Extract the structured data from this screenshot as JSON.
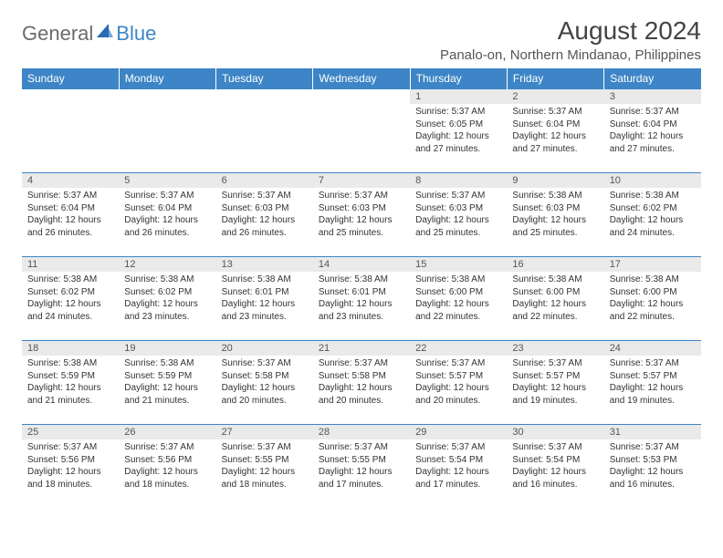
{
  "logo": {
    "part1": "General",
    "part2": "Blue"
  },
  "header": {
    "title": "August 2024",
    "subtitle": "Panalo-on, Northern Mindanao, Philippines"
  },
  "colors": {
    "header_bg": "#3d85c6",
    "header_text": "#ffffff",
    "daynum_bg": "#eaeaea",
    "cell_border": "#3d85c6",
    "page_bg": "#ffffff",
    "text": "#333333",
    "logo_gray": "#6b6b6b",
    "logo_blue": "#3d85c6"
  },
  "typography": {
    "title_fontsize": 28,
    "subtitle_fontsize": 15,
    "dayheader_fontsize": 12,
    "daynum_fontsize": 11,
    "body_fontsize": 10,
    "font_family": "Arial"
  },
  "calendar": {
    "day_headers": [
      "Sunday",
      "Monday",
      "Tuesday",
      "Wednesday",
      "Thursday",
      "Friday",
      "Saturday"
    ],
    "weeks": [
      [
        null,
        null,
        null,
        null,
        {
          "num": "1",
          "sunrise": "Sunrise: 5:37 AM",
          "sunset": "Sunset: 6:05 PM",
          "daylight": "Daylight: 12 hours and 27 minutes."
        },
        {
          "num": "2",
          "sunrise": "Sunrise: 5:37 AM",
          "sunset": "Sunset: 6:04 PM",
          "daylight": "Daylight: 12 hours and 27 minutes."
        },
        {
          "num": "3",
          "sunrise": "Sunrise: 5:37 AM",
          "sunset": "Sunset: 6:04 PM",
          "daylight": "Daylight: 12 hours and 27 minutes."
        }
      ],
      [
        {
          "num": "4",
          "sunrise": "Sunrise: 5:37 AM",
          "sunset": "Sunset: 6:04 PM",
          "daylight": "Daylight: 12 hours and 26 minutes."
        },
        {
          "num": "5",
          "sunrise": "Sunrise: 5:37 AM",
          "sunset": "Sunset: 6:04 PM",
          "daylight": "Daylight: 12 hours and 26 minutes."
        },
        {
          "num": "6",
          "sunrise": "Sunrise: 5:37 AM",
          "sunset": "Sunset: 6:03 PM",
          "daylight": "Daylight: 12 hours and 26 minutes."
        },
        {
          "num": "7",
          "sunrise": "Sunrise: 5:37 AM",
          "sunset": "Sunset: 6:03 PM",
          "daylight": "Daylight: 12 hours and 25 minutes."
        },
        {
          "num": "8",
          "sunrise": "Sunrise: 5:37 AM",
          "sunset": "Sunset: 6:03 PM",
          "daylight": "Daylight: 12 hours and 25 minutes."
        },
        {
          "num": "9",
          "sunrise": "Sunrise: 5:38 AM",
          "sunset": "Sunset: 6:03 PM",
          "daylight": "Daylight: 12 hours and 25 minutes."
        },
        {
          "num": "10",
          "sunrise": "Sunrise: 5:38 AM",
          "sunset": "Sunset: 6:02 PM",
          "daylight": "Daylight: 12 hours and 24 minutes."
        }
      ],
      [
        {
          "num": "11",
          "sunrise": "Sunrise: 5:38 AM",
          "sunset": "Sunset: 6:02 PM",
          "daylight": "Daylight: 12 hours and 24 minutes."
        },
        {
          "num": "12",
          "sunrise": "Sunrise: 5:38 AM",
          "sunset": "Sunset: 6:02 PM",
          "daylight": "Daylight: 12 hours and 23 minutes."
        },
        {
          "num": "13",
          "sunrise": "Sunrise: 5:38 AM",
          "sunset": "Sunset: 6:01 PM",
          "daylight": "Daylight: 12 hours and 23 minutes."
        },
        {
          "num": "14",
          "sunrise": "Sunrise: 5:38 AM",
          "sunset": "Sunset: 6:01 PM",
          "daylight": "Daylight: 12 hours and 23 minutes."
        },
        {
          "num": "15",
          "sunrise": "Sunrise: 5:38 AM",
          "sunset": "Sunset: 6:00 PM",
          "daylight": "Daylight: 12 hours and 22 minutes."
        },
        {
          "num": "16",
          "sunrise": "Sunrise: 5:38 AM",
          "sunset": "Sunset: 6:00 PM",
          "daylight": "Daylight: 12 hours and 22 minutes."
        },
        {
          "num": "17",
          "sunrise": "Sunrise: 5:38 AM",
          "sunset": "Sunset: 6:00 PM",
          "daylight": "Daylight: 12 hours and 22 minutes."
        }
      ],
      [
        {
          "num": "18",
          "sunrise": "Sunrise: 5:38 AM",
          "sunset": "Sunset: 5:59 PM",
          "daylight": "Daylight: 12 hours and 21 minutes."
        },
        {
          "num": "19",
          "sunrise": "Sunrise: 5:38 AM",
          "sunset": "Sunset: 5:59 PM",
          "daylight": "Daylight: 12 hours and 21 minutes."
        },
        {
          "num": "20",
          "sunrise": "Sunrise: 5:37 AM",
          "sunset": "Sunset: 5:58 PM",
          "daylight": "Daylight: 12 hours and 20 minutes."
        },
        {
          "num": "21",
          "sunrise": "Sunrise: 5:37 AM",
          "sunset": "Sunset: 5:58 PM",
          "daylight": "Daylight: 12 hours and 20 minutes."
        },
        {
          "num": "22",
          "sunrise": "Sunrise: 5:37 AM",
          "sunset": "Sunset: 5:57 PM",
          "daylight": "Daylight: 12 hours and 20 minutes."
        },
        {
          "num": "23",
          "sunrise": "Sunrise: 5:37 AM",
          "sunset": "Sunset: 5:57 PM",
          "daylight": "Daylight: 12 hours and 19 minutes."
        },
        {
          "num": "24",
          "sunrise": "Sunrise: 5:37 AM",
          "sunset": "Sunset: 5:57 PM",
          "daylight": "Daylight: 12 hours and 19 minutes."
        }
      ],
      [
        {
          "num": "25",
          "sunrise": "Sunrise: 5:37 AM",
          "sunset": "Sunset: 5:56 PM",
          "daylight": "Daylight: 12 hours and 18 minutes."
        },
        {
          "num": "26",
          "sunrise": "Sunrise: 5:37 AM",
          "sunset": "Sunset: 5:56 PM",
          "daylight": "Daylight: 12 hours and 18 minutes."
        },
        {
          "num": "27",
          "sunrise": "Sunrise: 5:37 AM",
          "sunset": "Sunset: 5:55 PM",
          "daylight": "Daylight: 12 hours and 18 minutes."
        },
        {
          "num": "28",
          "sunrise": "Sunrise: 5:37 AM",
          "sunset": "Sunset: 5:55 PM",
          "daylight": "Daylight: 12 hours and 17 minutes."
        },
        {
          "num": "29",
          "sunrise": "Sunrise: 5:37 AM",
          "sunset": "Sunset: 5:54 PM",
          "daylight": "Daylight: 12 hours and 17 minutes."
        },
        {
          "num": "30",
          "sunrise": "Sunrise: 5:37 AM",
          "sunset": "Sunset: 5:54 PM",
          "daylight": "Daylight: 12 hours and 16 minutes."
        },
        {
          "num": "31",
          "sunrise": "Sunrise: 5:37 AM",
          "sunset": "Sunset: 5:53 PM",
          "daylight": "Daylight: 12 hours and 16 minutes."
        }
      ]
    ]
  }
}
